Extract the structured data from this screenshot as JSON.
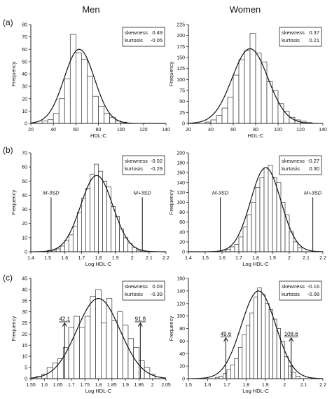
{
  "column_titles": [
    "Men",
    "Women"
  ],
  "row_labels": [
    "(a)",
    "(b)",
    "(c)"
  ],
  "chart_data": [
    {
      "type": "bar",
      "panel": "a-men",
      "xlabel": "HDL-C",
      "ylabel": "Frequency",
      "xlim": [
        20,
        140
      ],
      "ylim": [
        0,
        80
      ],
      "xticks": [
        20,
        40,
        60,
        80,
        100,
        120,
        140
      ],
      "yticks": [
        0,
        10,
        20,
        30,
        40,
        50,
        60,
        70,
        80
      ],
      "bin_width": 5,
      "bins": [
        30,
        35,
        40,
        45,
        50,
        55,
        60,
        65,
        70,
        75,
        80,
        85,
        90,
        95,
        100
      ],
      "values": [
        2,
        3,
        8,
        20,
        36,
        72,
        57,
        52,
        38,
        22,
        14,
        8,
        5,
        2,
        1
      ],
      "curve": {
        "type": "normal",
        "mean": 63,
        "sd": 13.5,
        "peak": 60
      },
      "stats": [
        {
          "label": "skewness",
          "value": "0.49"
        },
        {
          "label": "kurtosis",
          "value": "-0.05"
        }
      ]
    },
    {
      "type": "bar",
      "panel": "a-women",
      "xlabel": "HDL-C",
      "ylabel": "Frequency",
      "xlim": [
        20,
        140
      ],
      "ylim": [
        0,
        225
      ],
      "xticks": [
        20,
        40,
        60,
        80,
        100,
        120,
        140
      ],
      "yticks": [
        0,
        25,
        50,
        75,
        100,
        125,
        150,
        175,
        200,
        225
      ],
      "bin_width": 5,
      "bins": [
        35,
        40,
        45,
        50,
        55,
        60,
        65,
        70,
        75,
        80,
        85,
        90,
        95,
        100,
        105,
        110,
        115,
        120,
        125
      ],
      "values": [
        3,
        8,
        18,
        35,
        60,
        110,
        145,
        165,
        205,
        160,
        140,
        95,
        75,
        45,
        28,
        14,
        8,
        5,
        2
      ],
      "curve": {
        "type": "normal",
        "mean": 75,
        "sd": 16,
        "peak": 170
      },
      "stats": [
        {
          "label": "skewness",
          "value": "0.37"
        },
        {
          "label": "kurtosis",
          "value": "0.21"
        }
      ]
    },
    {
      "type": "bar",
      "panel": "b-men",
      "xlabel": "Log HDL-C",
      "ylabel": "Frequency",
      "xlim": [
        1.4,
        2.2
      ],
      "ylim": [
        0,
        70
      ],
      "xticks": [
        "1.4",
        "1.5",
        "1.6",
        "1.7",
        "1.8",
        "1.9",
        "2",
        "2.1",
        "2.2"
      ],
      "yticks": [
        0,
        10,
        20,
        30,
        40,
        50,
        60,
        70
      ],
      "bin_width": 0.025,
      "bins": [
        1.5,
        1.525,
        1.55,
        1.575,
        1.6,
        1.625,
        1.65,
        1.675,
        1.7,
        1.725,
        1.75,
        1.775,
        1.8,
        1.825,
        1.85,
        1.875,
        1.9,
        1.925,
        1.95,
        1.975,
        2.0,
        2.025
      ],
      "values": [
        1,
        1,
        2,
        4,
        8,
        12,
        18,
        28,
        38,
        45,
        55,
        62,
        57,
        50,
        46,
        32,
        25,
        16,
        10,
        6,
        3,
        1
      ],
      "curve": {
        "type": "normal",
        "mean": 1.79,
        "sd": 0.095,
        "peak": 54
      },
      "reference_lines": [
        {
          "label": "M-3SD",
          "x": 1.52
        },
        {
          "label": "M+3SD",
          "x": 2.06
        }
      ],
      "stats": [
        {
          "label": "skewness",
          "value": "-0.02"
        },
        {
          "label": "kurtosis",
          "value": "-0.29"
        }
      ]
    },
    {
      "type": "bar",
      "panel": "b-women",
      "xlabel": "Log HDL-C",
      "ylabel": "Frequency",
      "xlim": [
        1.4,
        2.2
      ],
      "ylim": [
        0,
        200
      ],
      "xticks": [
        "1.4",
        "1.5",
        "1.6",
        "1.7",
        "1.8",
        "1.9",
        "2",
        "2.1",
        "2.2"
      ],
      "yticks": [
        0,
        20,
        40,
        60,
        80,
        100,
        120,
        140,
        160,
        180,
        200
      ],
      "bin_width": 0.025,
      "bins": [
        1.6,
        1.625,
        1.65,
        1.675,
        1.7,
        1.725,
        1.75,
        1.775,
        1.8,
        1.825,
        1.85,
        1.875,
        1.9,
        1.925,
        1.95,
        1.975,
        2.0,
        2.025,
        2.05
      ],
      "values": [
        3,
        5,
        10,
        15,
        30,
        50,
        75,
        100,
        130,
        150,
        170,
        175,
        150,
        140,
        100,
        75,
        40,
        20,
        8
      ],
      "curve": {
        "type": "normal",
        "mean": 1.86,
        "sd": 0.09,
        "peak": 170
      },
      "reference_lines": [
        {
          "label": "M-3SD",
          "x": 1.59
        },
        {
          "label": "M+3SD",
          "x": 2.14
        }
      ],
      "stats": [
        {
          "label": "skewness",
          "value": "-0.27"
        },
        {
          "label": "kurtosis",
          "value": "0.30"
        }
      ]
    },
    {
      "type": "bar",
      "panel": "c-men",
      "xlabel": "Log HDL-C",
      "ylabel": "Frequency",
      "xlim": [
        1.55,
        2.05
      ],
      "ylim": [
        0,
        45
      ],
      "xticks": [
        "1.55",
        "1.6",
        "1.65",
        "1.7",
        "1.75",
        "1.8",
        "1.85",
        "1.9",
        "1.95",
        "2",
        "2.05"
      ],
      "yticks": [
        0,
        5,
        10,
        15,
        20,
        25,
        30,
        35,
        40,
        45
      ],
      "bin_width": 0.02,
      "bins": [
        1.57,
        1.59,
        1.61,
        1.63,
        1.65,
        1.67,
        1.69,
        1.71,
        1.73,
        1.75,
        1.77,
        1.79,
        1.81,
        1.83,
        1.85,
        1.87,
        1.89,
        1.91,
        1.93,
        1.95,
        1.97,
        1.99
      ],
      "values": [
        1,
        2,
        5,
        7,
        9,
        14,
        23,
        28,
        23,
        28,
        37,
        40,
        25,
        36,
        26,
        30,
        24,
        18,
        14,
        8,
        5,
        2
      ],
      "curve": {
        "type": "normal",
        "mean": 1.8,
        "sd": 0.08,
        "peak": 36
      },
      "arrows": [
        {
          "label": "42.1",
          "x": 1.675,
          "y_top": 25
        },
        {
          "label": "91.8",
          "x": 1.955,
          "y_top": 25
        }
      ],
      "stats": [
        {
          "label": "skewness",
          "value": "0.03"
        },
        {
          "label": "kurtosis",
          "value": "-0.39"
        }
      ]
    },
    {
      "type": "bar",
      "panel": "c-women",
      "xlabel": "Log HDL-C",
      "ylabel": "Frequency",
      "xlim": [
        1.5,
        2.2
      ],
      "ylim": [
        0,
        160
      ],
      "xticks": [
        "1.5",
        "1.6",
        "1.7",
        "1.8",
        "1.9",
        "2",
        "2.1",
        "2.2"
      ],
      "yticks": [
        0,
        20,
        40,
        60,
        80,
        100,
        120,
        140,
        160
      ],
      "bin_width": 0.02,
      "bins": [
        1.64,
        1.66,
        1.68,
        1.7,
        1.72,
        1.74,
        1.76,
        1.78,
        1.8,
        1.82,
        1.84,
        1.86,
        1.88,
        1.9,
        1.92,
        1.94,
        1.96,
        1.98,
        2.0,
        2.02,
        2.04,
        2.06
      ],
      "values": [
        2,
        4,
        8,
        14,
        22,
        32,
        50,
        70,
        85,
        105,
        130,
        145,
        135,
        120,
        110,
        95,
        80,
        60,
        35,
        20,
        10,
        4
      ],
      "curve": {
        "type": "normal",
        "mean": 1.865,
        "sd": 0.09,
        "peak": 140
      },
      "arrows": [
        {
          "label": "49.6",
          "x": 1.695,
          "y_top": 65
        },
        {
          "label": "108.6",
          "x": 2.035,
          "y_top": 65
        }
      ],
      "stats": [
        {
          "label": "skewness",
          "value": "-0.16"
        },
        {
          "label": "kurtosis",
          "value": "-0.08"
        }
      ]
    }
  ]
}
